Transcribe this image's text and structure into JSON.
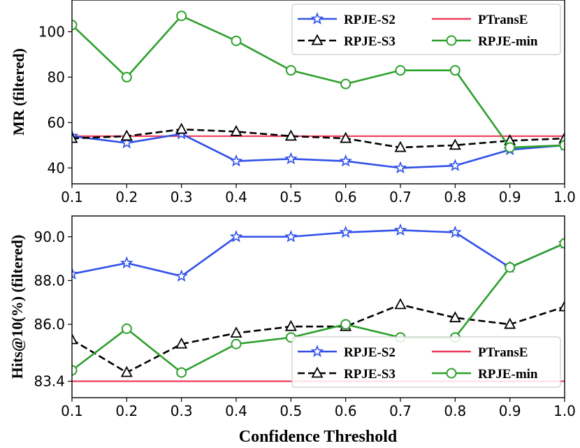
{
  "chart_data": [
    {
      "type": "line",
      "ylabel": "MR (filtered)",
      "xlabel": "",
      "x": [
        0.1,
        0.2,
        0.3,
        0.4,
        0.5,
        0.6,
        0.7,
        0.8,
        0.9,
        1.0
      ],
      "xtick_labels": [
        "0.1",
        "0.2",
        "0.3",
        "0.4",
        "0.5",
        "0.6",
        "0.7",
        "0.8",
        "0.9",
        "1.0"
      ],
      "xlim": [
        0.1,
        1.0
      ],
      "ylim": [
        33,
        114
      ],
      "yticks": [
        40,
        60,
        80,
        100
      ],
      "ytick_labels": [
        "40",
        "60",
        "80",
        "100"
      ],
      "legend_position": "top-right",
      "series": [
        {
          "name": "RPJE-S2",
          "color": "#3050e8",
          "marker": "star",
          "dash": "solid",
          "values": [
            54,
            51,
            55,
            43,
            44,
            43,
            40,
            41,
            48,
            50
          ]
        },
        {
          "name": "PTransE",
          "color": "#ee3a5a",
          "marker": "none",
          "dash": "solid",
          "values": [
            54,
            54,
            54,
            54,
            54,
            54,
            54,
            54,
            54,
            54
          ]
        },
        {
          "name": "RPJE-S3",
          "color": "#000000",
          "marker": "triangle",
          "dash": "dashed",
          "values": [
            53,
            54,
            57,
            56,
            54,
            53,
            49,
            50,
            52,
            53
          ]
        },
        {
          "name": "RPJE-min",
          "color": "#2ca02c",
          "marker": "circle",
          "dash": "solid",
          "values": [
            103,
            80,
            107,
            96,
            83,
            77,
            83,
            83,
            49,
            50
          ]
        }
      ]
    },
    {
      "type": "line",
      "ylabel": "Hits@10(%) (filtered)",
      "xlabel": "Confidence Threshold",
      "x": [
        0.1,
        0.2,
        0.3,
        0.4,
        0.5,
        0.6,
        0.7,
        0.8,
        0.9,
        1.0
      ],
      "xtick_labels": [
        "0.1",
        "0.2",
        "0.3",
        "0.4",
        "0.5",
        "0.6",
        "0.7",
        "0.8",
        "0.9",
        "1.0"
      ],
      "xlim": [
        0.1,
        1.0
      ],
      "ylim": [
        82.65,
        90.95
      ],
      "yticks": [
        83.4,
        86.0,
        88.0,
        90.0
      ],
      "ytick_labels": [
        "83.4",
        "86.0",
        "88.0",
        "90.0"
      ],
      "legend_position": "bottom-right",
      "series": [
        {
          "name": "RPJE-S2",
          "color": "#3050e8",
          "marker": "star",
          "dash": "solid",
          "values": [
            88.3,
            88.8,
            88.2,
            90.0,
            90.0,
            90.2,
            90.3,
            90.2,
            88.6,
            89.7
          ]
        },
        {
          "name": "PTransE",
          "color": "#ee3a5a",
          "marker": "none",
          "dash": "solid",
          "values": [
            83.4,
            83.4,
            83.4,
            83.4,
            83.4,
            83.4,
            83.4,
            83.4,
            83.4,
            83.4
          ]
        },
        {
          "name": "RPJE-S3",
          "color": "#000000",
          "marker": "triangle",
          "dash": "dashed",
          "values": [
            85.3,
            83.8,
            85.1,
            85.6,
            85.9,
            85.9,
            86.9,
            86.3,
            86.0,
            86.8
          ]
        },
        {
          "name": "RPJE-min",
          "color": "#2ca02c",
          "marker": "circle",
          "dash": "solid",
          "values": [
            83.9,
            85.8,
            83.8,
            85.1,
            85.4,
            86.0,
            85.4,
            85.4,
            88.6,
            89.7
          ]
        }
      ]
    }
  ]
}
